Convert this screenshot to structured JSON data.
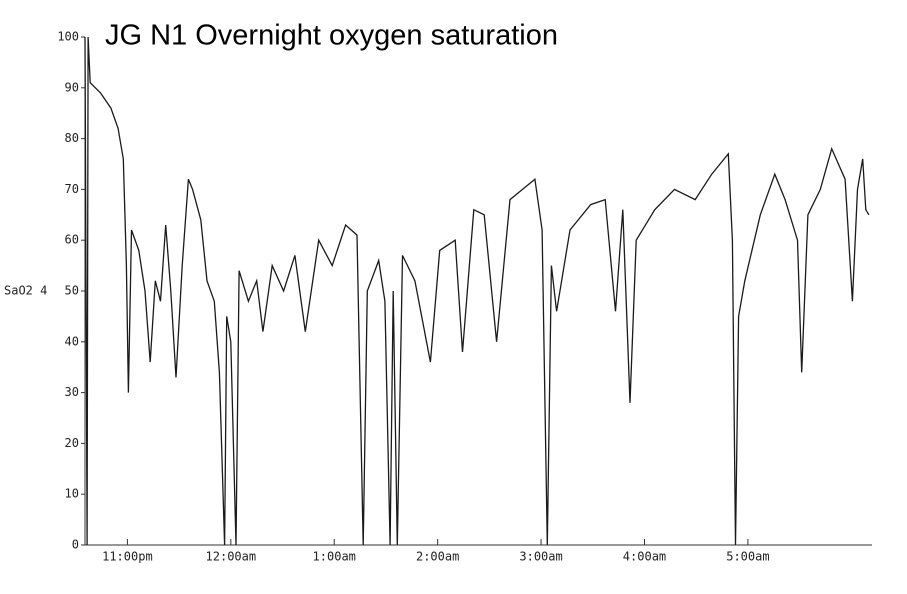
{
  "chart_data": {
    "type": "line",
    "title": "JG N1 Overnight oxygen saturation",
    "y_label": "SaO2 4",
    "x": [
      22.59,
      22.61,
      22.62,
      22.64,
      22.74,
      22.84,
      22.91,
      22.96,
      22.99,
      23.01,
      23.04,
      23.11,
      23.17,
      23.22,
      23.27,
      23.32,
      23.37,
      23.42,
      23.47,
      23.53,
      23.59,
      23.63,
      23.71,
      23.77,
      23.84,
      23.89,
      23.94,
      23.96,
      24.0,
      24.05,
      24.08,
      24.17,
      24.25,
      24.31,
      24.4,
      24.51,
      24.62,
      24.72,
      24.85,
      24.98,
      25.11,
      25.22,
      25.28,
      25.32,
      25.43,
      25.49,
      25.54,
      25.57,
      25.61,
      25.66,
      25.78,
      25.93,
      26.02,
      26.17,
      26.24,
      26.35,
      26.45,
      26.57,
      26.7,
      26.82,
      26.94,
      27.01,
      27.06,
      27.1,
      27.15,
      27.28,
      27.48,
      27.62,
      27.72,
      27.79,
      27.86,
      27.92,
      28.1,
      28.29,
      28.49,
      28.65,
      28.81,
      28.85,
      28.88,
      28.91,
      28.97,
      29.12,
      29.26,
      29.36,
      29.48,
      29.52,
      29.58,
      29.7,
      29.81,
      29.94,
      30.01,
      30.06,
      30.11,
      30.14,
      30.17
    ],
    "series": [
      {
        "name": "SaO2",
        "color": "#1a1a1a",
        "values": [
          100,
          0,
          100,
          91,
          89,
          86,
          82,
          76,
          55,
          30,
          62,
          58,
          50,
          36,
          52,
          48,
          63,
          50,
          33,
          55,
          72,
          70,
          64,
          52,
          48,
          34,
          0,
          45,
          40,
          0,
          54,
          48,
          52,
          42,
          55,
          50,
          57,
          42,
          60,
          55,
          63,
          61,
          0,
          50,
          56,
          48,
          0,
          50,
          0,
          57,
          52,
          36,
          58,
          60,
          38,
          66,
          65,
          40,
          68,
          70,
          72,
          62,
          0,
          55,
          46,
          62,
          67,
          68,
          46,
          66,
          28,
          60,
          66,
          70,
          68,
          73,
          77,
          60,
          0,
          45,
          52,
          65,
          73,
          68,
          60,
          34,
          65,
          70,
          78,
          72,
          48,
          70,
          76,
          66,
          65
        ]
      }
    ],
    "xlim": [
      22.59,
      30.2
    ],
    "xticks": [
      {
        "value": 23,
        "label": "11:00pm"
      },
      {
        "value": 24,
        "label": "12:00am"
      },
      {
        "value": 25,
        "label": "1:00am"
      },
      {
        "value": 26,
        "label": "2:00am"
      },
      {
        "value": 27,
        "label": "3:00am"
      },
      {
        "value": 28,
        "label": "4:00am"
      },
      {
        "value": 29,
        "label": "5:00am"
      }
    ],
    "ylim": [
      0,
      100
    ],
    "yticks": [
      0,
      10,
      20,
      30,
      40,
      50,
      60,
      70,
      80,
      90,
      100
    ],
    "grid": false
  }
}
